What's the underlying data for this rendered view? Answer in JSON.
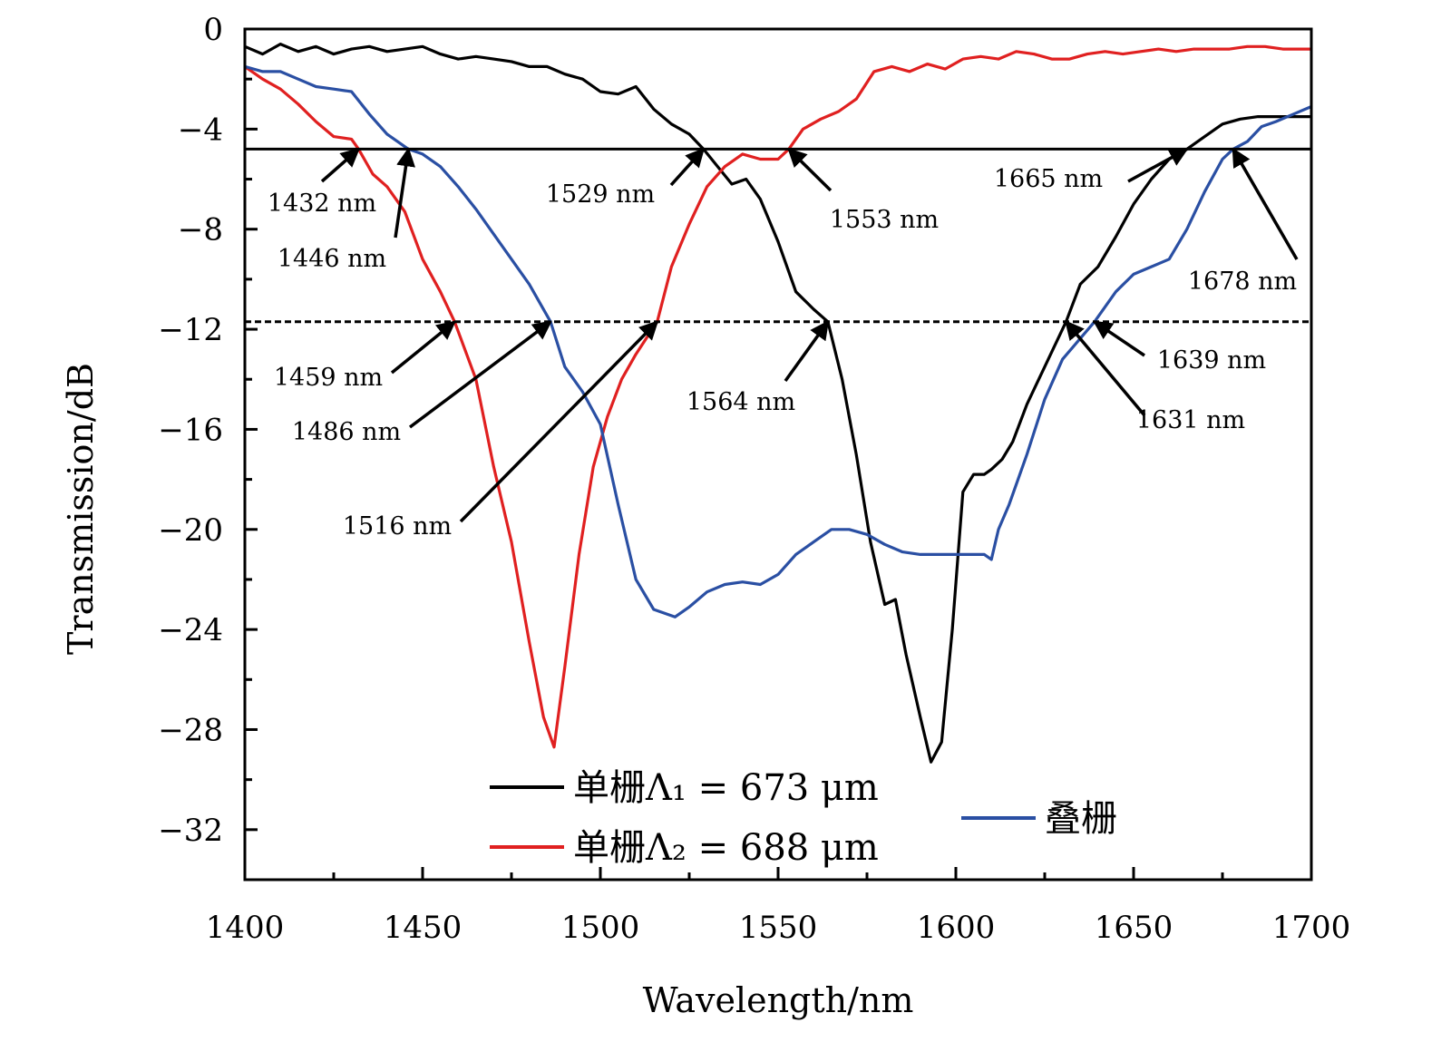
{
  "chart_data": {
    "type": "line",
    "title": "",
    "xlabel": "Wavelength/nm",
    "ylabel": "Transmission/dB",
    "xlim": [
      1400,
      1700
    ],
    "ylim": [
      -34,
      0
    ],
    "xticks": [
      1400,
      1450,
      1500,
      1550,
      1600,
      1650,
      1700
    ],
    "xtick_labels": [
      "1400",
      "1450",
      "1500",
      "1550",
      "1600",
      "1650",
      "1700"
    ],
    "yticks": [
      0,
      -4,
      -8,
      -12,
      -16,
      -20,
      -24,
      -28,
      -32
    ],
    "ytick_labels": [
      "0",
      "−4",
      "−8",
      "−12",
      "−16",
      "−20",
      "−24",
      "−28",
      "−32"
    ],
    "grid": false,
    "legend": [
      {
        "label": "单栅Λ₁ = 673 μm",
        "color": "#000000"
      },
      {
        "label": "单栅Λ₂ = 688 μm",
        "color": "#e02020"
      },
      {
        "label": "叠栅",
        "color": "#2a4fa3"
      }
    ],
    "reference_lines": [
      {
        "y": -4.8,
        "style": "solid"
      },
      {
        "y": -11.7,
        "style": "dashed"
      }
    ],
    "series": [
      {
        "name": "单栅Λ₁ = 673 μm",
        "color": "#000000",
        "x": [
          1400,
          1405,
          1410,
          1415,
          1420,
          1425,
          1430,
          1435,
          1440,
          1445,
          1450,
          1455,
          1460,
          1465,
          1470,
          1475,
          1480,
          1485,
          1490,
          1495,
          1500,
          1505,
          1510,
          1515,
          1520,
          1525,
          1529,
          1533,
          1537,
          1541,
          1545,
          1550,
          1555,
          1560,
          1564,
          1568,
          1572,
          1576,
          1580,
          1583,
          1586,
          1590,
          1593,
          1596,
          1599,
          1602,
          1605,
          1608,
          1610,
          1613,
          1616,
          1620,
          1625,
          1631,
          1635,
          1640,
          1645,
          1650,
          1655,
          1660,
          1665,
          1670,
          1675,
          1680,
          1685,
          1690,
          1695,
          1700
        ],
        "y": [
          -0.7,
          -1.0,
          -0.6,
          -0.9,
          -0.7,
          -1.0,
          -0.8,
          -0.7,
          -0.9,
          -0.8,
          -0.7,
          -1.0,
          -1.2,
          -1.1,
          -1.2,
          -1.3,
          -1.5,
          -1.5,
          -1.8,
          -2.0,
          -2.5,
          -2.6,
          -2.3,
          -3.2,
          -3.8,
          -4.2,
          -4.8,
          -5.5,
          -6.2,
          -6.0,
          -6.8,
          -8.5,
          -10.5,
          -11.2,
          -11.7,
          -14.0,
          -17.0,
          -20.5,
          -23.0,
          -22.8,
          -25.0,
          -27.5,
          -29.3,
          -28.5,
          -24.0,
          -18.5,
          -17.8,
          -17.8,
          -17.6,
          -17.2,
          -16.5,
          -15.0,
          -13.5,
          -11.7,
          -10.2,
          -9.5,
          -8.3,
          -7.0,
          -6.0,
          -5.2,
          -4.8,
          -4.3,
          -3.8,
          -3.6,
          -3.5,
          -3.5,
          -3.5,
          -3.5
        ]
      },
      {
        "name": "单栅Λ₂ = 688 μm",
        "color": "#e02020",
        "x": [
          1400,
          1405,
          1410,
          1415,
          1420,
          1425,
          1430,
          1432,
          1436,
          1440,
          1445,
          1450,
          1455,
          1459,
          1465,
          1470,
          1475,
          1480,
          1484,
          1487,
          1490,
          1494,
          1498,
          1502,
          1506,
          1510,
          1516,
          1520,
          1525,
          1530,
          1535,
          1540,
          1545,
          1550,
          1553,
          1557,
          1562,
          1567,
          1572,
          1577,
          1582,
          1587,
          1592,
          1597,
          1602,
          1607,
          1612,
          1617,
          1622,
          1627,
          1632,
          1637,
          1642,
          1647,
          1652,
          1657,
          1662,
          1667,
          1672,
          1677,
          1682,
          1687,
          1692,
          1697,
          1700
        ],
        "y": [
          -1.5,
          -2.0,
          -2.4,
          -3.0,
          -3.7,
          -4.3,
          -4.4,
          -4.8,
          -5.8,
          -6.3,
          -7.3,
          -9.2,
          -10.5,
          -11.7,
          -14.0,
          -17.5,
          -20.5,
          -24.5,
          -27.5,
          -28.7,
          -25.5,
          -21.0,
          -17.5,
          -15.5,
          -14.0,
          -13.0,
          -11.7,
          -9.5,
          -7.8,
          -6.3,
          -5.5,
          -5.0,
          -5.2,
          -5.2,
          -4.8,
          -4.0,
          -3.6,
          -3.3,
          -2.8,
          -1.7,
          -1.5,
          -1.7,
          -1.4,
          -1.6,
          -1.2,
          -1.1,
          -1.2,
          -0.9,
          -1.0,
          -1.2,
          -1.2,
          -1.0,
          -0.9,
          -1.0,
          -0.9,
          -0.8,
          -0.9,
          -0.8,
          -0.8,
          -0.8,
          -0.7,
          -0.7,
          -0.8,
          -0.8,
          -0.8
        ]
      },
      {
        "name": "叠栅",
        "color": "#2a4fa3",
        "x": [
          1400,
          1405,
          1410,
          1415,
          1420,
          1425,
          1430,
          1435,
          1440,
          1446,
          1450,
          1455,
          1460,
          1465,
          1470,
          1475,
          1480,
          1486,
          1490,
          1495,
          1500,
          1505,
          1510,
          1515,
          1521,
          1525,
          1530,
          1535,
          1540,
          1545,
          1550,
          1555,
          1560,
          1565,
          1570,
          1575,
          1580,
          1585,
          1590,
          1595,
          1600,
          1605,
          1608,
          1610,
          1612,
          1615,
          1620,
          1625,
          1630,
          1639,
          1645,
          1650,
          1655,
          1660,
          1665,
          1670,
          1675,
          1678,
          1682,
          1686,
          1690,
          1695,
          1700
        ],
        "y": [
          -1.5,
          -1.7,
          -1.7,
          -2.0,
          -2.3,
          -2.4,
          -2.5,
          -3.4,
          -4.2,
          -4.8,
          -5.0,
          -5.5,
          -6.3,
          -7.2,
          -8.2,
          -9.2,
          -10.2,
          -11.7,
          -13.5,
          -14.5,
          -15.8,
          -19.0,
          -22.0,
          -23.2,
          -23.5,
          -23.1,
          -22.5,
          -22.2,
          -22.1,
          -22.2,
          -21.8,
          -21.0,
          -20.5,
          -20.0,
          -20.0,
          -20.2,
          -20.6,
          -20.9,
          -21.0,
          -21.0,
          -21.0,
          -21.0,
          -21.0,
          -21.2,
          -20.0,
          -19.0,
          -17.0,
          -14.8,
          -13.2,
          -11.7,
          -10.5,
          -9.8,
          -9.5,
          -9.2,
          -8.0,
          -6.5,
          -5.2,
          -4.8,
          -4.5,
          -3.9,
          -3.7,
          -3.4,
          -3.1
        ]
      }
    ],
    "annotations": [
      {
        "text": "1432 nm",
        "x": 1432,
        "y": -4.8
      },
      {
        "text": "1446 nm",
        "x": 1446,
        "y": -4.8
      },
      {
        "text": "1529 nm",
        "x": 1529,
        "y": -4.8
      },
      {
        "text": "1553 nm",
        "x": 1553,
        "y": -4.8
      },
      {
        "text": "1665 nm",
        "x": 1665,
        "y": -4.8
      },
      {
        "text": "1678 nm",
        "x": 1678,
        "y": -4.8
      },
      {
        "text": "1459 nm",
        "x": 1459,
        "y": -11.7
      },
      {
        "text": "1486 nm",
        "x": 1486,
        "y": -11.7
      },
      {
        "text": "1516 nm",
        "x": 1516,
        "y": -11.7
      },
      {
        "text": "1564 nm",
        "x": 1564,
        "y": -11.7
      },
      {
        "text": "1631 nm",
        "x": 1631,
        "y": -11.7
      },
      {
        "text": "1639 nm",
        "x": 1639,
        "y": -11.7
      }
    ]
  }
}
